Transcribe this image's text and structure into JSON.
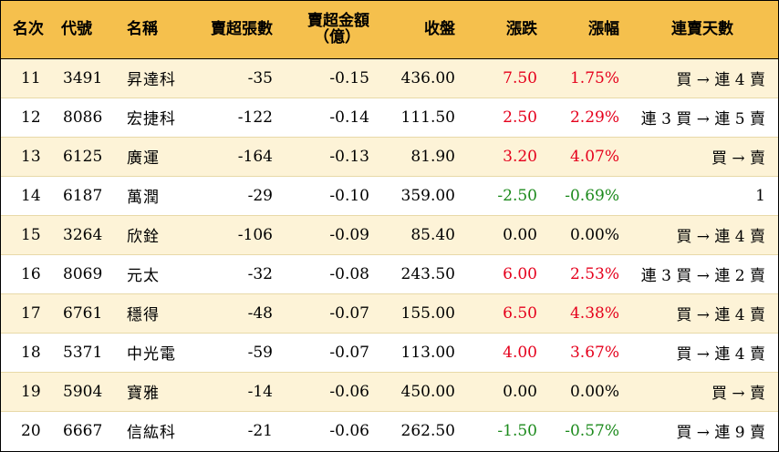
{
  "colors": {
    "header_bg": "#f5c04d",
    "odd_row_bg": "#fdf3d7",
    "even_row_bg": "#ffffff",
    "up": "#e5001c",
    "down": "#1c8a1c"
  },
  "headers": {
    "rank": "名次",
    "code": "代號",
    "name": "名稱",
    "net_sell_lots": "賣超張數",
    "net_sell_amount_line1": "賣超金額",
    "net_sell_amount_line2": "（億）",
    "close": "收盤",
    "change": "漲跌",
    "change_pct": "漲幅",
    "streak": "連賣天數"
  },
  "rows": [
    {
      "rank": "11",
      "code": "3491",
      "name": "昇達科",
      "lots": "-35",
      "amount": "-0.15",
      "close": "436.00",
      "change": "7.50",
      "pct": "1.75%",
      "trend": "up",
      "streak": "買 → 連 4 賣"
    },
    {
      "rank": "12",
      "code": "8086",
      "name": "宏捷科",
      "lots": "-122",
      "amount": "-0.14",
      "close": "111.50",
      "change": "2.50",
      "pct": "2.29%",
      "trend": "up",
      "streak": "連 3 買 → 連 5 賣"
    },
    {
      "rank": "13",
      "code": "6125",
      "name": "廣運",
      "lots": "-164",
      "amount": "-0.13",
      "close": "81.90",
      "change": "3.20",
      "pct": "4.07%",
      "trend": "up",
      "streak": "買 → 賣"
    },
    {
      "rank": "14",
      "code": "6187",
      "name": "萬潤",
      "lots": "-29",
      "amount": "-0.10",
      "close": "359.00",
      "change": "-2.50",
      "pct": "-0.69%",
      "trend": "down",
      "streak": "1"
    },
    {
      "rank": "15",
      "code": "3264",
      "name": "欣銓",
      "lots": "-106",
      "amount": "-0.09",
      "close": "85.40",
      "change": "0.00",
      "pct": "0.00%",
      "trend": "flat",
      "streak": "買 → 連 4 賣"
    },
    {
      "rank": "16",
      "code": "8069",
      "name": "元太",
      "lots": "-32",
      "amount": "-0.08",
      "close": "243.50",
      "change": "6.00",
      "pct": "2.53%",
      "trend": "up",
      "streak": "連 3 買 → 連 2 賣"
    },
    {
      "rank": "17",
      "code": "6761",
      "name": "穩得",
      "lots": "-48",
      "amount": "-0.07",
      "close": "155.00",
      "change": "6.50",
      "pct": "4.38%",
      "trend": "up",
      "streak": "買 → 連 4 賣"
    },
    {
      "rank": "18",
      "code": "5371",
      "name": "中光電",
      "lots": "-59",
      "amount": "-0.07",
      "close": "113.00",
      "change": "4.00",
      "pct": "3.67%",
      "trend": "up",
      "streak": "買 → 連 4 賣"
    },
    {
      "rank": "19",
      "code": "5904",
      "name": "寶雅",
      "lots": "-14",
      "amount": "-0.06",
      "close": "450.00",
      "change": "0.00",
      "pct": "0.00%",
      "trend": "flat",
      "streak": "買 → 賣"
    },
    {
      "rank": "20",
      "code": "6667",
      "name": "信紘科",
      "lots": "-21",
      "amount": "-0.06",
      "close": "262.50",
      "change": "-1.50",
      "pct": "-0.57%",
      "trend": "down",
      "streak": "買 → 連 9 賣"
    }
  ]
}
